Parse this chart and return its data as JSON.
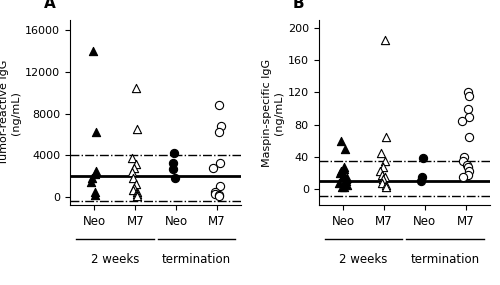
{
  "panel_A": {
    "title": "A",
    "ylabel": "Tumor-reactive IgG\n(ng/mL)",
    "ylim": [
      -800,
      17000
    ],
    "yticks": [
      0,
      4000,
      8000,
      12000,
      16000
    ],
    "solid_line": 2000,
    "upper_dash": 4000,
    "lower_dash": -400,
    "groups": {
      "Neo_2w": {
        "x": 1,
        "marker": "^",
        "filled": true,
        "values": [
          14000,
          6200,
          2500,
          2200,
          1800,
          1400,
          500,
          200
        ]
      },
      "M7_2w": {
        "x": 2,
        "marker": "^",
        "filled": false,
        "values": [
          10500,
          6500,
          3700,
          3200,
          2800,
          2400,
          1800,
          1200,
          900,
          700,
          500,
          300,
          100
        ]
      },
      "Neo_term": {
        "x": 3,
        "marker": "o",
        "filled": true,
        "values": [
          4200,
          3300,
          2700,
          1800
        ]
      },
      "M7_term": {
        "x": 4,
        "marker": "o",
        "filled": false,
        "values": [
          8800,
          6800,
          6200,
          3300,
          2800,
          1000,
          500,
          300,
          200,
          100
        ]
      }
    }
  },
  "panel_B": {
    "title": "B",
    "ylabel": "Maspin-specific IgG\n(ng/mL)",
    "ylim": [
      -20,
      210
    ],
    "yticks": [
      0,
      40,
      80,
      120,
      160,
      200
    ],
    "solid_line": 10,
    "upper_dash": 35,
    "lower_dash": -8,
    "groups": {
      "Neo_2w": {
        "x": 1,
        "marker": "^",
        "filled": true,
        "values": [
          60,
          50,
          28,
          25,
          22,
          20,
          18,
          16,
          14,
          12,
          10,
          8,
          5,
          3,
          2
        ]
      },
      "M7_2w": {
        "x": 2,
        "marker": "^",
        "filled": false,
        "values": [
          185,
          65,
          45,
          35,
          28,
          22,
          18,
          15,
          12,
          8,
          5,
          2
        ]
      },
      "Neo_term": {
        "x": 3,
        "marker": "o",
        "filled": true,
        "values": [
          38,
          15,
          10
        ]
      },
      "M7_term": {
        "x": 4,
        "marker": "o",
        "filled": false,
        "values": [
          120,
          115,
          100,
          90,
          85,
          65,
          40,
          35,
          30,
          28,
          22,
          18,
          15
        ]
      }
    }
  },
  "xticklabels": [
    "Neo",
    "M7",
    "Neo",
    "M7"
  ],
  "group_labels": [
    "2 weeks",
    "termination"
  ],
  "figsize": [
    5.0,
    2.85
  ],
  "dpi": 100
}
